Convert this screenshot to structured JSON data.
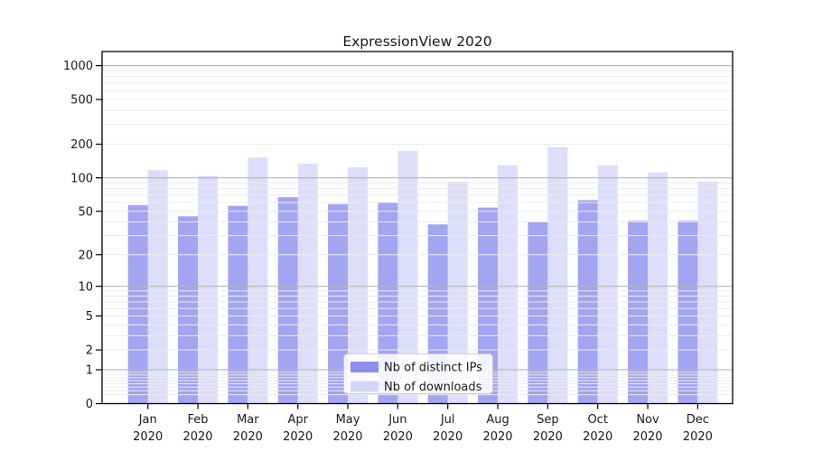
{
  "chart_data": {
    "type": "bar",
    "title": "ExpressionView 2020",
    "categories": [
      "Jan 2020",
      "Feb 2020",
      "Mar 2020",
      "Apr 2020",
      "May 2020",
      "Jun 2020",
      "Jul 2020",
      "Aug 2020",
      "Sep 2020",
      "Oct 2020",
      "Nov 2020",
      "Dec 2020"
    ],
    "series": [
      {
        "name": "Nb of distinct IPs",
        "color": "#8b8eee",
        "values": [
          57,
          45,
          56,
          67,
          58,
          60,
          38,
          54,
          40,
          63,
          41,
          41
        ]
      },
      {
        "name": "Nb of downloads",
        "color": "#d4d6f9",
        "values": [
          117,
          104,
          152,
          134,
          124,
          174,
          92,
          130,
          188,
          130,
          112,
          93
        ]
      }
    ],
    "bar_opacity": 0.8,
    "y_axis": {
      "scale": "log1p",
      "tick_values": [
        1000,
        500,
        200,
        100,
        50,
        20,
        10,
        5,
        2,
        1,
        0
      ],
      "tick_labels": [
        "1000",
        "500",
        "200",
        "100",
        "50",
        "20",
        "10",
        "5",
        "2",
        "1",
        "0"
      ],
      "major_grid_values": [
        1,
        10,
        100,
        1000
      ],
      "minor_grid_values": [
        0.2,
        0.3,
        0.4,
        0.5,
        0.6,
        0.7,
        0.8,
        0.9,
        2,
        3,
        4,
        5,
        6,
        7,
        8,
        9,
        20,
        30,
        40,
        50,
        60,
        70,
        80,
        90,
        200,
        300,
        400,
        500,
        600,
        700,
        800,
        900
      ],
      "top_value": 1320
    },
    "x_axis": {
      "tick_label_lines": 2
    },
    "legend": {
      "position": "lower center",
      "entries": [
        "Nb of distinct IPs",
        "Nb of downloads"
      ]
    }
  },
  "colors": {
    "background": "#ffffff",
    "axis": "#000000",
    "text": "#1a1a1a",
    "grid_major": "#b5b5b5",
    "grid_minor": "#ececec",
    "legend_border": "#cccccc",
    "legend_fill": "#ffffff"
  }
}
